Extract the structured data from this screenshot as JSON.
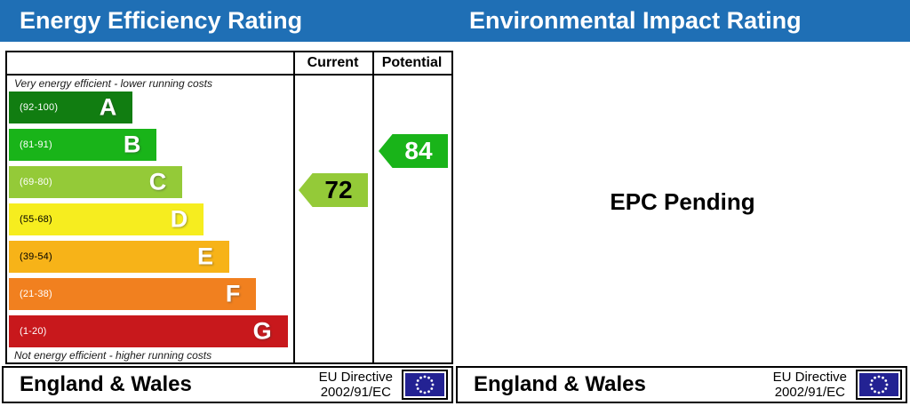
{
  "header": {
    "left_title": "Energy Efficiency Rating",
    "right_title": "Environmental Impact Rating",
    "bar_color": "#1f6fb5"
  },
  "epc": {
    "columns": {
      "current_label": "Current",
      "potential_label": "Potential"
    },
    "top_note": "Very energy efficient - lower running costs",
    "bottom_note": "Not energy efficient - higher running costs",
    "bands": [
      {
        "letter": "A",
        "range": "(92-100)",
        "color": "#117d11",
        "range_text_color": "#ffffff",
        "width_pct": 43.5
      },
      {
        "letter": "B",
        "range": "(81-91)",
        "color": "#19b419",
        "range_text_color": "#ffffff",
        "width_pct": 52
      },
      {
        "letter": "C",
        "range": "(69-80)",
        "color": "#94ca38",
        "range_text_color": "#ffffff",
        "width_pct": 61
      },
      {
        "letter": "D",
        "range": "(55-68)",
        "color": "#f6ed1f",
        "range_text_color": "#000000",
        "width_pct": 68.5
      },
      {
        "letter": "E",
        "range": "(39-54)",
        "color": "#f7b318",
        "range_text_color": "#000000",
        "width_pct": 77.5
      },
      {
        "letter": "F",
        "range": "(21-38)",
        "color": "#f1801f",
        "range_text_color": "#ffffff",
        "width_pct": 87
      },
      {
        "letter": "G",
        "range": "(1-20)",
        "color": "#c8181c",
        "range_text_color": "#ffffff",
        "width_pct": 98
      }
    ],
    "current": {
      "value": "72",
      "color": "#94ca38",
      "text_color": "#000000"
    },
    "potential": {
      "value": "84",
      "color": "#19b419",
      "text_color": "#ffffff"
    }
  },
  "right_panel": {
    "status_text": "EPC Pending"
  },
  "footer": {
    "region": "England & Wales",
    "directive_line1": "EU Directive",
    "directive_line2": "2002/91/EC",
    "flag_color": "#232293"
  },
  "chart_data": {
    "type": "bar",
    "orientation": "horizontal",
    "title": "Energy Efficiency Rating",
    "categories": [
      "A",
      "B",
      "C",
      "D",
      "E",
      "F",
      "G"
    ],
    "band_ranges": [
      "92-100",
      "81-91",
      "69-80",
      "55-68",
      "39-54",
      "21-38",
      "1-20"
    ],
    "band_colors": [
      "#117d11",
      "#19b419",
      "#94ca38",
      "#f6ed1f",
      "#f7b318",
      "#f1801f",
      "#c8181c"
    ],
    "bar_width_pct": [
      43.5,
      52,
      61,
      68.5,
      77.5,
      87,
      98
    ],
    "markers": [
      {
        "name": "Current",
        "value": 72,
        "band": "C"
      },
      {
        "name": "Potential",
        "value": 84,
        "band": "B"
      }
    ],
    "top_note": "Very energy efficient - lower running costs",
    "bottom_note": "Not energy efficient - higher running costs",
    "secondary_chart": {
      "title": "Environmental Impact Rating",
      "status": "EPC Pending",
      "data": []
    }
  }
}
